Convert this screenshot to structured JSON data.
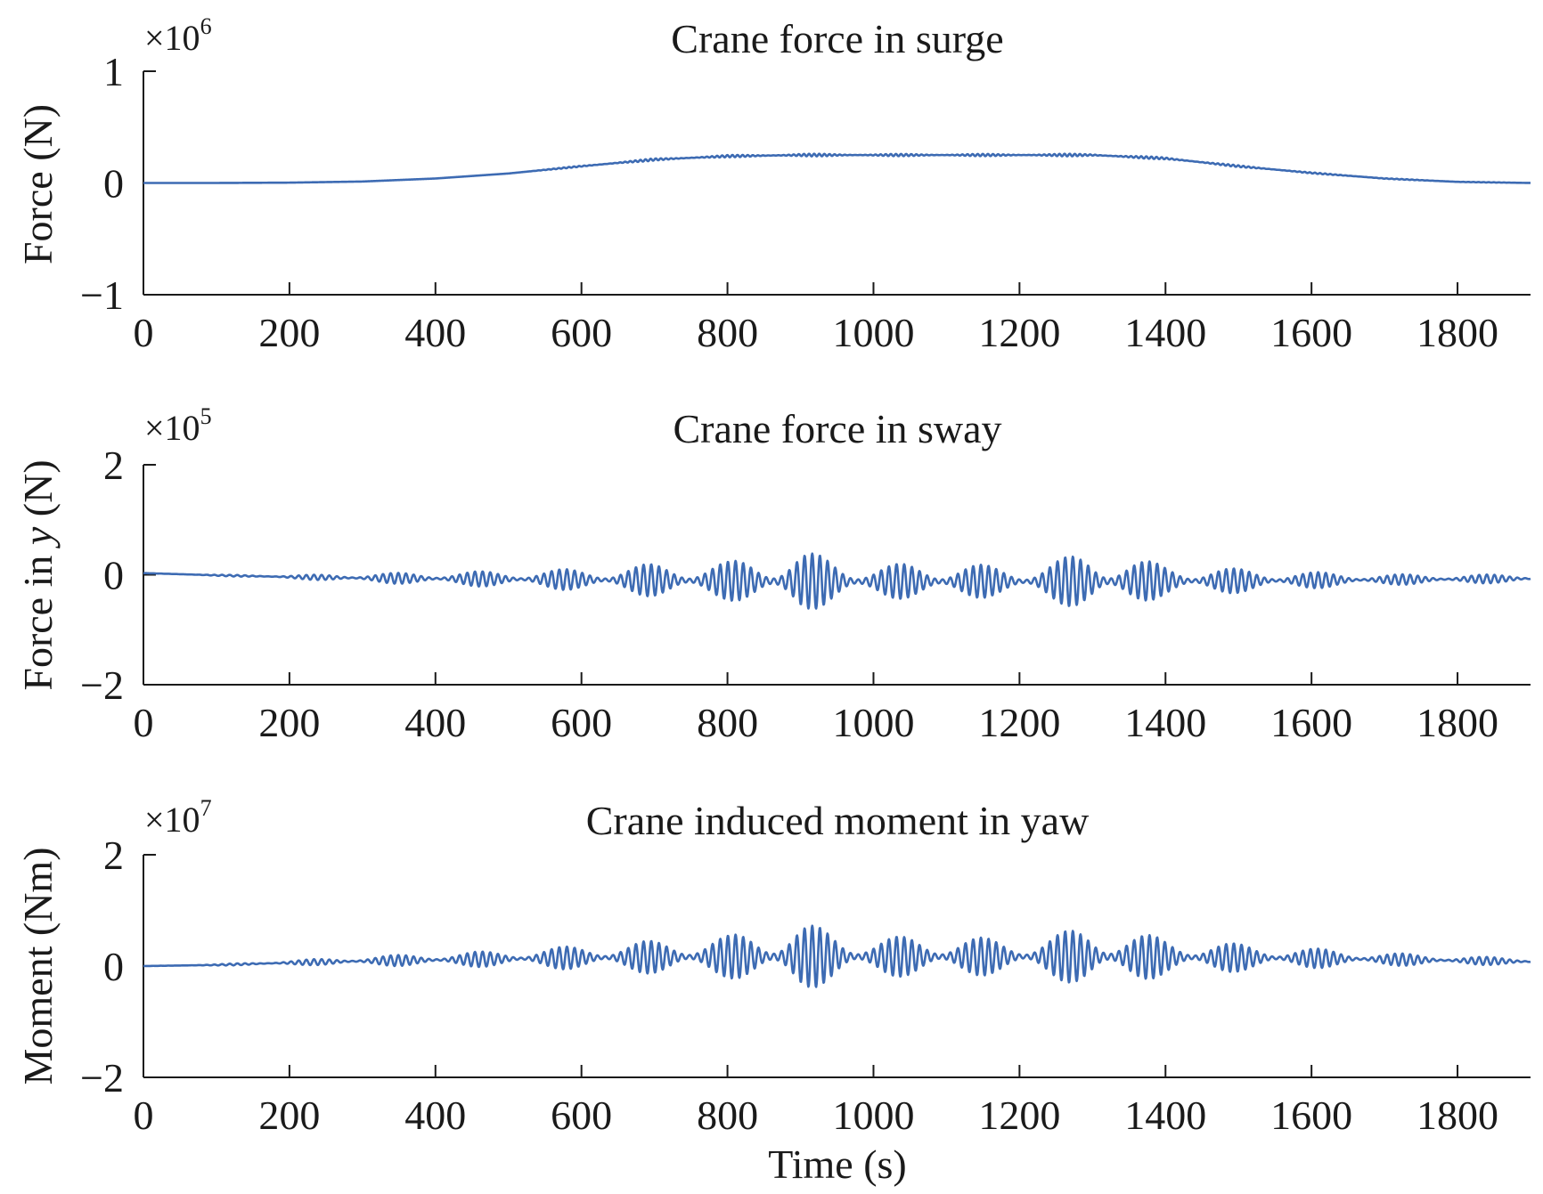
{
  "chart_data": [
    {
      "type": "line",
      "title": "Crane force in surge",
      "ylabel": "Force (N)",
      "ylabel_italic": "",
      "ylabel_suffix": "",
      "xlabel": "",
      "multiplier": {
        "base": "×10",
        "exponent": "6"
      },
      "xlim": [
        0,
        1900
      ],
      "ylim": [
        -1,
        1
      ],
      "xticks": [
        0,
        200,
        400,
        600,
        800,
        1000,
        1200,
        1400,
        1600,
        1800
      ],
      "yticks": [
        -1,
        0,
        1
      ],
      "ytick_labels": [
        "−1",
        "0",
        "1"
      ],
      "grid": false,
      "series": [
        {
          "color": "#3d6bb3",
          "x": [
            0,
            100,
            200,
            300,
            400,
            500,
            600,
            700,
            800,
            900,
            1000,
            1100,
            1200,
            1300,
            1400,
            1500,
            1600,
            1700,
            1800,
            1900
          ],
          "y": [
            0.0,
            0.0,
            0.003,
            0.013,
            0.04,
            0.085,
            0.15,
            0.21,
            0.24,
            0.25,
            0.25,
            0.25,
            0.25,
            0.25,
            0.22,
            0.15,
            0.09,
            0.04,
            0.01,
            0.0
          ],
          "oscillation_envelope": [
            0,
            0,
            0,
            0,
            0,
            0,
            0.006,
            0.01,
            0.01,
            0.012,
            0.01,
            0.01,
            0.01,
            0.012,
            0.01,
            0.008,
            0.005,
            0.003,
            0.002,
            0.001
          ]
        }
      ]
    },
    {
      "type": "line",
      "title": "Crane force in sway",
      "ylabel": "Force in ",
      "ylabel_italic": "y",
      "ylabel_suffix": " (N)",
      "xlabel": "",
      "multiplier": {
        "base": "×10",
        "exponent": "5"
      },
      "xlim": [
        0,
        1900
      ],
      "ylim": [
        -2,
        2
      ],
      "xticks": [
        0,
        200,
        400,
        600,
        800,
        1000,
        1200,
        1400,
        1600,
        1800
      ],
      "yticks": [
        -2,
        0,
        2
      ],
      "ytick_labels": [
        "−2",
        "0",
        "2"
      ],
      "grid": false,
      "series": [
        {
          "color": "#3d6bb3",
          "x": [
            0,
            100,
            200,
            300,
            400,
            500,
            600,
            700,
            800,
            900,
            1000,
            1100,
            1200,
            1300,
            1400,
            1500,
            1600,
            1700,
            1800,
            1900
          ],
          "y": [
            0.03,
            -0.01,
            -0.04,
            -0.06,
            -0.07,
            -0.08,
            -0.09,
            -0.1,
            -0.11,
            -0.12,
            -0.12,
            -0.12,
            -0.12,
            -0.12,
            -0.11,
            -0.11,
            -0.1,
            -0.09,
            -0.08,
            -0.07
          ],
          "oscillation_envelope": [
            0,
            0.01,
            0.03,
            0.08,
            0.12,
            0.15,
            0.2,
            0.3,
            0.35,
            0.55,
            0.3,
            0.35,
            0.25,
            0.55,
            0.3,
            0.22,
            0.15,
            0.1,
            0.08,
            0.08
          ]
        }
      ]
    },
    {
      "type": "line",
      "title": "Crane induced moment in yaw",
      "ylabel": "Moment (Nm)",
      "ylabel_italic": "",
      "ylabel_suffix": "",
      "xlabel": "Time (s)",
      "multiplier": {
        "base": "×10",
        "exponent": "7"
      },
      "xlim": [
        0,
        1900
      ],
      "ylim": [
        -2,
        2
      ],
      "xticks": [
        0,
        200,
        400,
        600,
        800,
        1000,
        1200,
        1400,
        1600,
        1800
      ],
      "yticks": [
        -2,
        0,
        2
      ],
      "ytick_labels": [
        "−2",
        "0",
        "2"
      ],
      "grid": false,
      "series": [
        {
          "color": "#3d6bb3",
          "x": [
            0,
            100,
            200,
            300,
            400,
            500,
            600,
            700,
            800,
            900,
            1000,
            1100,
            1200,
            1300,
            1400,
            1500,
            1600,
            1700,
            1800,
            1900
          ],
          "y": [
            0.0,
            0.02,
            0.06,
            0.09,
            0.11,
            0.13,
            0.15,
            0.16,
            0.17,
            0.17,
            0.17,
            0.17,
            0.17,
            0.17,
            0.16,
            0.15,
            0.14,
            0.12,
            0.1,
            0.08
          ],
          "oscillation_envelope": [
            0,
            0.01,
            0.04,
            0.08,
            0.12,
            0.15,
            0.22,
            0.3,
            0.38,
            0.6,
            0.35,
            0.38,
            0.3,
            0.55,
            0.35,
            0.25,
            0.18,
            0.12,
            0.08,
            0.06
          ]
        }
      ]
    }
  ]
}
